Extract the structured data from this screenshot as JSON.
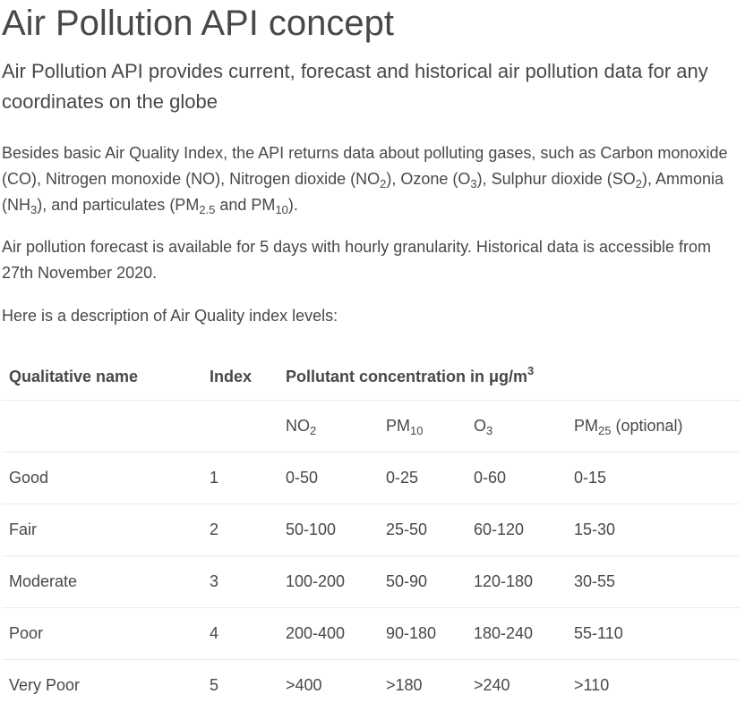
{
  "title": "Air Pollution API concept",
  "subtitle": "Air Pollution API provides current, forecast and historical air pollution data for any coordinates on the globe",
  "intro": {
    "t1": "Besides basic Air Quality Index, the API returns data about polluting gases, such as Carbon monoxide (CO), Nitrogen monoxide (NO), Nitrogen dioxide (NO",
    "s1": "2",
    "t2": "), Ozone (O",
    "s2": "3",
    "t3": "), Sulphur dioxide (SO",
    "s3": "2",
    "t4": "), Ammonia (NH",
    "s4": "3",
    "t5": "), and particulates (PM",
    "s5": "2.5",
    "t6": " and PM",
    "s6": "10",
    "t7": ")."
  },
  "forecast_text": "Air pollution forecast is available for 5 days with hourly granularity. Historical data is accessible from 27th November 2020.",
  "levels_intro": "Here is a description of Air Quality index levels:",
  "table": {
    "headers": {
      "qualitative": "Qualitative name",
      "index": "Index",
      "concentration": "Pollutant concentration in μg/m",
      "concentration_sup": "3"
    },
    "pollutants": {
      "no2": {
        "base": "NO",
        "sub": "2",
        "suffix": ""
      },
      "pm10": {
        "base": "PM",
        "sub": "10",
        "suffix": ""
      },
      "o3": {
        "base": "O",
        "sub": "3",
        "suffix": ""
      },
      "pm25": {
        "base": "PM",
        "sub": "25",
        "suffix": " (optional)"
      }
    },
    "rows": [
      {
        "name": "Good",
        "index": "1",
        "no2": "0-50",
        "pm10": "0-25",
        "o3": "0-60",
        "pm25": "0-15"
      },
      {
        "name": "Fair",
        "index": "2",
        "no2": "50-100",
        "pm10": "25-50",
        "o3": "60-120",
        "pm25": "15-30"
      },
      {
        "name": "Moderate",
        "index": "3",
        "no2": "100-200",
        "pm10": "50-90",
        "o3": "120-180",
        "pm25": "30-55"
      },
      {
        "name": "Poor",
        "index": "4",
        "no2": "200-400",
        "pm10": "90-180",
        "o3": "180-240",
        "pm25": "55-110"
      },
      {
        "name": "Very Poor",
        "index": "5",
        "no2": ">400",
        "pm10": ">180",
        "o3": ">240",
        "pm25": ">110"
      }
    ]
  }
}
